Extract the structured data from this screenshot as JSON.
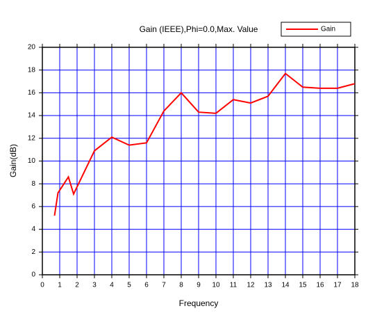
{
  "chart_data": {
    "type": "line",
    "title": "Gain (IEEE),Phi=0.0,Max. Value",
    "x_label": "Frequency",
    "y_label": "Gain(dB)",
    "x": [
      0.7,
      0.9,
      1.5,
      1.8,
      3,
      4,
      5,
      6,
      7,
      8,
      9,
      10,
      11,
      12,
      13,
      14,
      15,
      16,
      17,
      18
    ],
    "series": [
      {
        "name": "Gain",
        "color": "#ff0000",
        "values": [
          5.2,
          7.2,
          8.6,
          7.1,
          10.9,
          12.1,
          11.4,
          11.6,
          14.4,
          16.0,
          14.3,
          14.2,
          15.4,
          15.1,
          15.7,
          17.7,
          16.5,
          16.4,
          16.4,
          16.8
        ]
      }
    ],
    "xlim": [
      0,
      18
    ],
    "ylim": [
      0,
      20
    ],
    "xticks": [
      0,
      1,
      2,
      3,
      4,
      5,
      6,
      7,
      8,
      9,
      10,
      11,
      12,
      13,
      14,
      15,
      16,
      17,
      18
    ],
    "yticks": [
      0,
      2,
      4,
      6,
      8,
      10,
      12,
      14,
      16,
      18,
      20
    ],
    "grid": true,
    "grid_color": "#0000ff"
  }
}
